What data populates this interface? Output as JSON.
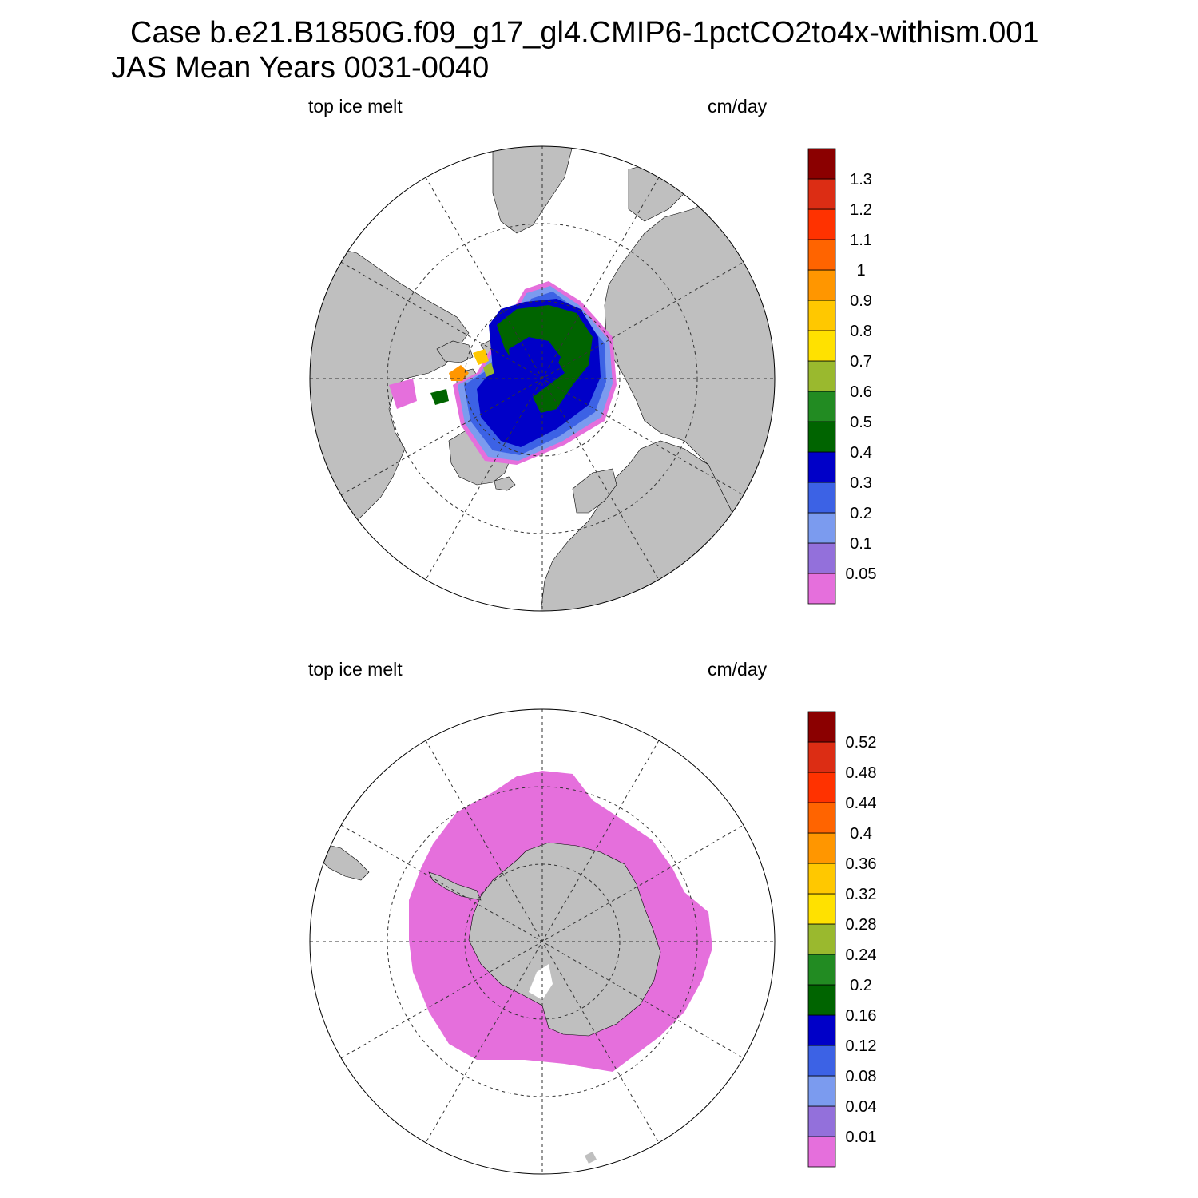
{
  "title": {
    "line1": "Case b.e21.B1850G.f09_g17_gl4.CMIP6-1pctCO2to4x-withism.001",
    "line2": "JAS Mean   Years 0031-0040"
  },
  "colors": {
    "land": "#bfbfbf",
    "ocean": "#ffffff",
    "scale": [
      "#e56fdc",
      "#9370db",
      "#7b9bef",
      "#3c62e5",
      "#0000c8",
      "#006400",
      "#228b22",
      "#9ab92e",
      "#ffe100",
      "#ffc800",
      "#ff9600",
      "#ff6400",
      "#ff3200",
      "#dc2d14",
      "#8b0000"
    ]
  },
  "panels": [
    {
      "id": "north",
      "left_label": "top ice melt",
      "right_label": "cm/day",
      "hemisphere": "Arctic",
      "colorbar_labels": [
        "0.05",
        "0.1",
        "0.2",
        "0.3",
        "0.4",
        "0.5",
        "0.6",
        "0.7",
        "0.8",
        "0.9",
        "1",
        "1.1",
        "1.2",
        "1.3"
      ]
    },
    {
      "id": "south",
      "left_label": "top ice melt",
      "right_label": "cm/day",
      "hemisphere": "Antarctic",
      "colorbar_labels": [
        "0.01",
        "0.04",
        "0.08",
        "0.12",
        "0.16",
        "0.2",
        "0.24",
        "0.28",
        "0.32",
        "0.36",
        "0.4",
        "0.44",
        "0.48",
        "0.52"
      ]
    }
  ]
}
